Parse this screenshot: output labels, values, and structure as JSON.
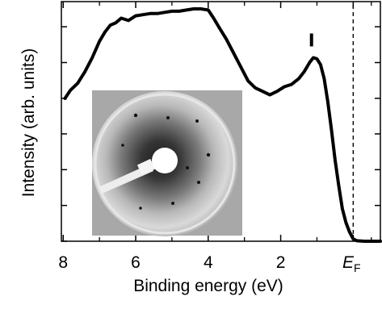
{
  "chart_data": {
    "type": "line",
    "title": "",
    "xlabel": "Binding energy (eV)",
    "ylabel": "Intensity (arb. units)",
    "xlim": [
      8.05,
      -0.75
    ],
    "x_reversed": true,
    "ylim": [
      0,
      1
    ],
    "grid": false,
    "x_tick_labels": [
      {
        "value": 8,
        "label": "8"
      },
      {
        "value": 6,
        "label": "6"
      },
      {
        "value": 4,
        "label": "4"
      },
      {
        "value": 2,
        "label": "2"
      }
    ],
    "fermi_label": {
      "value": 0,
      "main": "E",
      "sub": "F"
    },
    "fermi_line": {
      "x": 0,
      "style": "dashed"
    },
    "peak_marker": {
      "x": 1.15,
      "y": 0.79
    },
    "y_ticks": [
      0,
      0.154,
      0.308,
      0.462,
      0.615,
      0.769,
      0.923
    ],
    "x_minor_ticks": [
      7,
      5,
      3,
      1,
      -0.5
    ],
    "inset": {
      "type": "diffraction-pattern-image"
    },
    "series": [
      {
        "color": "#000000",
        "x": [
          7.95,
          7.8,
          7.6,
          7.4,
          7.2,
          7.0,
          6.85,
          6.7,
          6.55,
          6.4,
          6.2,
          6.0,
          5.8,
          5.6,
          5.4,
          5.2,
          5.0,
          4.8,
          4.6,
          4.4,
          4.2,
          4.0,
          3.85,
          3.7,
          3.5,
          3.3,
          3.1,
          2.9,
          2.7,
          2.5,
          2.3,
          2.1,
          1.9,
          1.7,
          1.5,
          1.35,
          1.2,
          1.1,
          1.0,
          0.9,
          0.8,
          0.7,
          0.6,
          0.5,
          0.4,
          0.3,
          0.2,
          0.1,
          0.0,
          -0.1,
          -0.3,
          -0.6,
          -0.75
        ],
        "y": [
          0.615,
          0.65,
          0.68,
          0.73,
          0.79,
          0.86,
          0.9,
          0.93,
          0.94,
          0.96,
          0.95,
          0.97,
          0.975,
          0.98,
          0.98,
          0.985,
          0.99,
          0.99,
          0.995,
          1.0,
          1.0,
          0.995,
          0.96,
          0.92,
          0.87,
          0.81,
          0.75,
          0.69,
          0.66,
          0.645,
          0.63,
          0.645,
          0.665,
          0.675,
          0.7,
          0.73,
          0.77,
          0.79,
          0.785,
          0.76,
          0.7,
          0.6,
          0.48,
          0.35,
          0.24,
          0.14,
          0.08,
          0.04,
          0.01,
          0.002,
          0.0,
          0.0,
          0.0
        ]
      }
    ]
  }
}
